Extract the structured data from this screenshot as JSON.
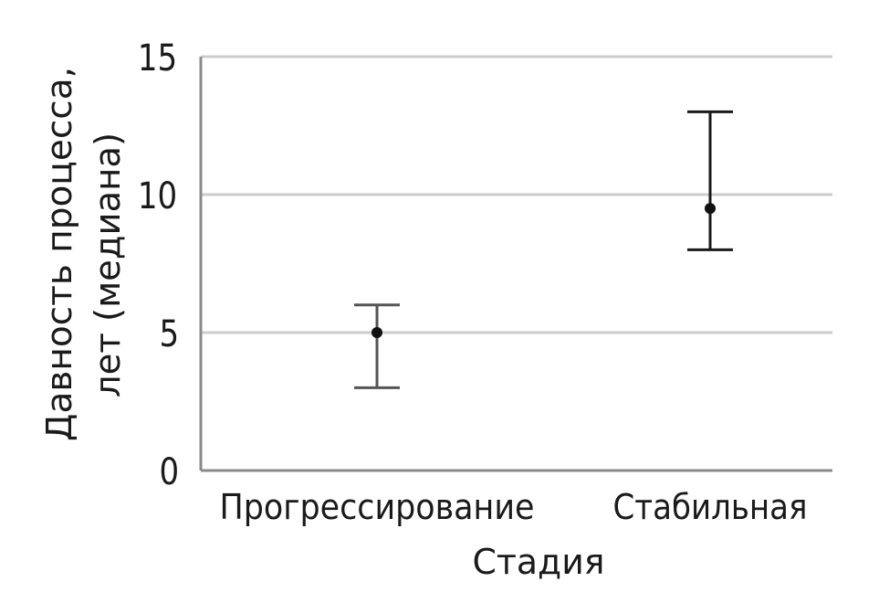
{
  "chart_data": {
    "type": "scatter",
    "subtype": "median-with-range",
    "title": "",
    "xlabel": "Стадия",
    "ylabel_lines": [
      "Давность процесса,",
      "лет (медиана)"
    ],
    "categories": [
      "Прогрессирование",
      "Стабильная"
    ],
    "series": [
      {
        "points": [
          {
            "category": "Прогрессирование",
            "median": 5,
            "low": 3,
            "high": 6
          },
          {
            "category": "Стабильная",
            "median": 9.5,
            "low": 8,
            "high": 13
          }
        ]
      }
    ],
    "ylim": [
      0,
      15
    ],
    "yticks": [
      0,
      5,
      10,
      15
    ],
    "grid": true,
    "colors": {
      "grid": "#cccccc",
      "axis": "#8a8a8a",
      "marker": "#111111",
      "errorbar_1": "#555555",
      "errorbar_2": "#1a1a1a",
      "text": "#1a1a1a"
    }
  }
}
